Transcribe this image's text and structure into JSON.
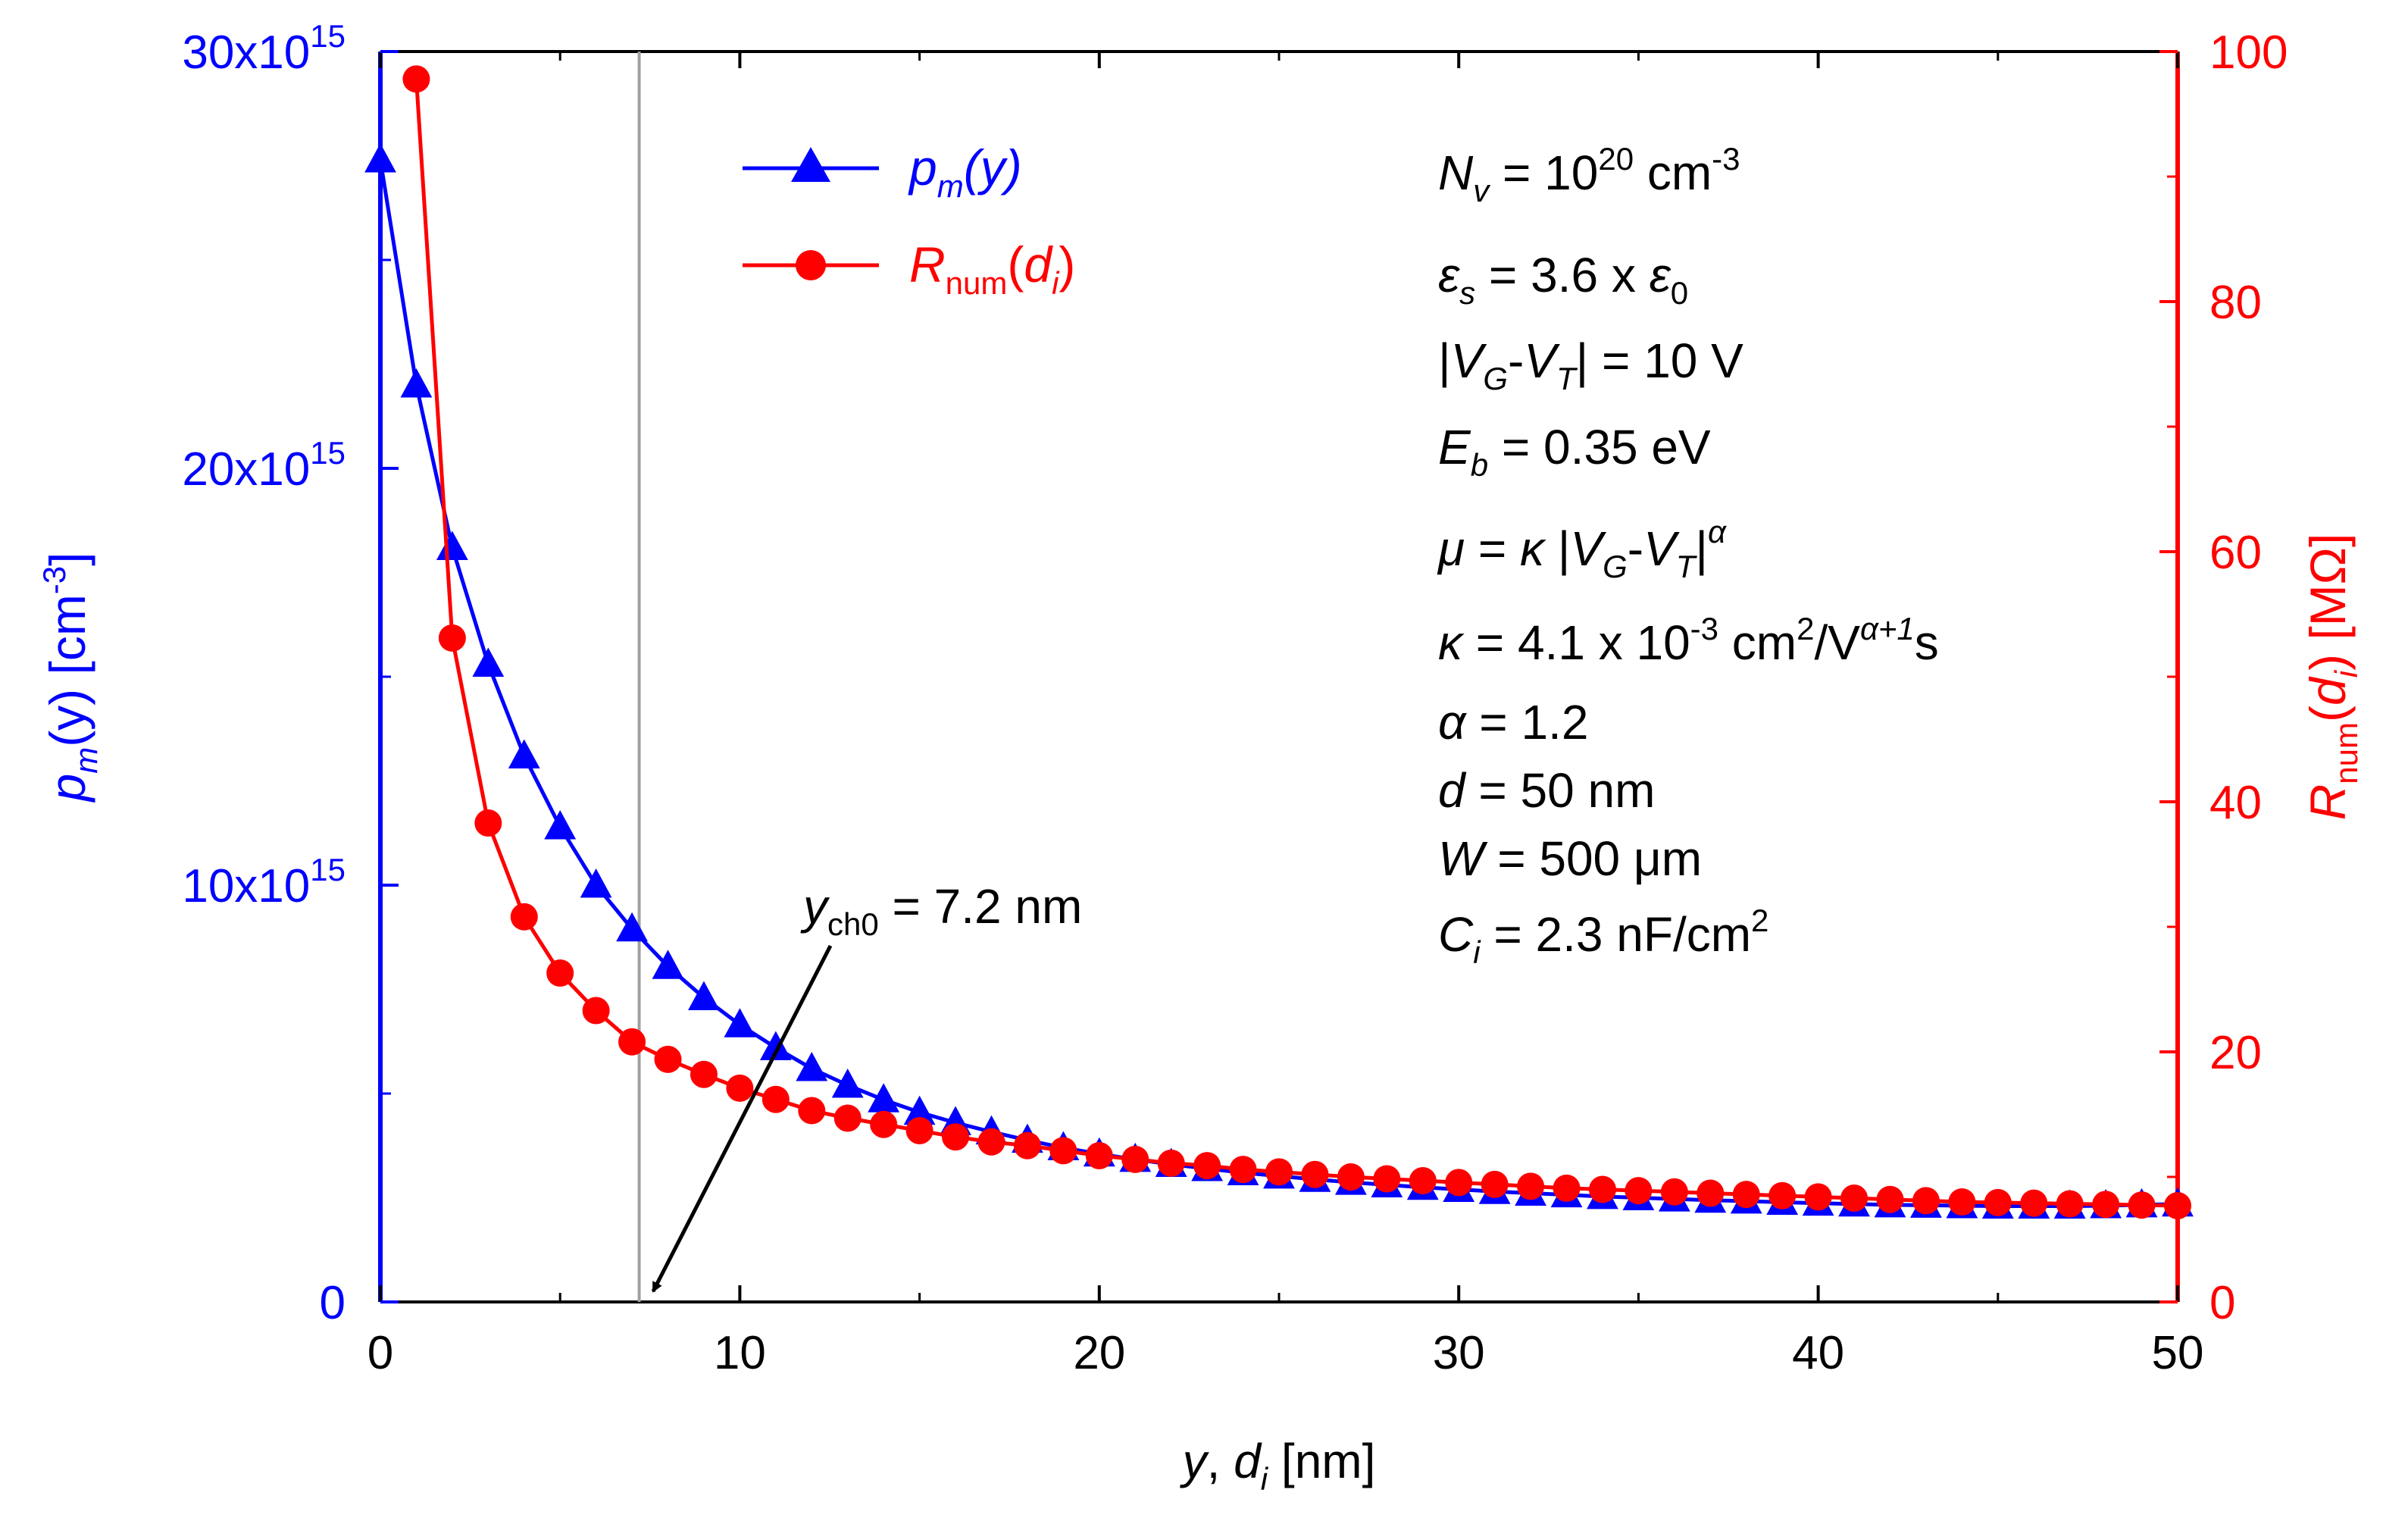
{
  "chart_data": {
    "type": "line",
    "x": [
      0,
      1,
      2,
      3,
      4,
      5,
      6,
      7,
      8,
      9,
      10,
      11,
      12,
      13,
      14,
      15,
      16,
      17,
      18,
      19,
      20,
      21,
      22,
      23,
      24,
      25,
      26,
      27,
      28,
      29,
      30,
      31,
      32,
      33,
      34,
      35,
      36,
      37,
      38,
      39,
      40,
      41,
      42,
      43,
      44,
      45,
      46,
      47,
      48,
      49,
      50
    ],
    "series": [
      {
        "name": "pm(y)",
        "axis": "left",
        "color": "#0000ff",
        "marker": "triangle",
        "x": [
          0,
          1,
          2,
          3,
          4,
          5,
          6,
          7,
          8,
          9,
          10,
          11,
          12,
          13,
          14,
          15,
          16,
          17,
          18,
          19,
          20,
          21,
          22,
          23,
          24,
          25,
          26,
          27,
          28,
          29,
          30,
          31,
          32,
          33,
          34,
          35,
          36,
          37,
          38,
          39,
          40,
          41,
          42,
          43,
          44,
          45,
          46,
          47,
          48,
          49,
          50
        ],
        "values": [
          2.74e+16,
          2.2e+16,
          1.81e+16,
          1.53e+16,
          1.31e+16,
          1.14e+16,
          1e+16,
          8950000000000000.0,
          8050000000000000.0,
          7300000000000000.0,
          6650000000000000.0,
          6100000000000000.0,
          5600000000000000.0,
          5200000000000000.0,
          4850000000000000.0,
          4550000000000000.0,
          4300000000000000.0,
          4080000000000000.0,
          3880000000000000.0,
          3700000000000000.0,
          3550000000000000.0,
          3420000000000000.0,
          3300000000000000.0,
          3200000000000000.0,
          3100000000000000.0,
          3020000000000000.0,
          2940000000000000.0,
          2870000000000000.0,
          2810000000000000.0,
          2750000000000000.0,
          2700000000000000.0,
          2650000000000000.0,
          2610000000000000.0,
          2570000000000000.0,
          2530000000000000.0,
          2500000000000000.0,
          2470000000000000.0,
          2440000000000000.0,
          2420000000000000.0,
          2390000000000000.0,
          2370000000000000.0,
          2350000000000000.0,
          2330000000000000.0,
          2320000000000000.0,
          2310000000000000.0,
          2300000000000000.0,
          2300000000000000.0,
          2300000000000000.0,
          2310000000000000.0,
          2330000000000000.0,
          2350000000000000.0
        ]
      },
      {
        "name": "Rnum(di)",
        "axis": "right",
        "color": "#ff0000",
        "marker": "circle",
        "x": [
          1,
          2,
          3,
          4,
          5,
          6,
          7,
          8,
          9,
          10,
          11,
          12,
          13,
          14,
          15,
          16,
          17,
          18,
          19,
          20,
          21,
          22,
          23,
          24,
          25,
          26,
          27,
          28,
          29,
          30,
          31,
          32,
          33,
          34,
          35,
          36,
          37,
          38,
          39,
          40,
          41,
          42,
          43,
          44,
          45,
          46,
          47,
          48,
          49,
          50
        ],
        "values": [
          97.8,
          53.1,
          38.3,
          30.8,
          26.3,
          23.3,
          20.8,
          19.4,
          18.2,
          17.1,
          16.2,
          15.3,
          14.7,
          14.2,
          13.7,
          13.2,
          12.8,
          12.5,
          12.1,
          11.7,
          11.4,
          11.1,
          10.9,
          10.6,
          10.4,
          10.2,
          10.0,
          9.85,
          9.7,
          9.55,
          9.4,
          9.25,
          9.1,
          9.0,
          8.9,
          8.8,
          8.7,
          8.6,
          8.5,
          8.4,
          8.3,
          8.2,
          8.1,
          8.0,
          7.95,
          7.9,
          7.85,
          7.8,
          7.75,
          7.7
        ]
      }
    ],
    "xlim": [
      0,
      50
    ],
    "xticks": [
      0,
      10,
      20,
      30,
      40,
      50
    ],
    "xlabel_parts": {
      "y": "y",
      "sep": ", ",
      "d": "d",
      "i": "i",
      "unit": " [nm]"
    },
    "ylim_left": [
      0,
      3e+16
    ],
    "yticks_left": [
      {
        "value": 0,
        "label": "0",
        "sup": ""
      },
      {
        "value": 1e+16,
        "label": "10x10",
        "sup": "15"
      },
      {
        "value": 2e+16,
        "label": "20x10",
        "sup": "15"
      },
      {
        "value": 3e+16,
        "label": "30x10",
        "sup": "15"
      }
    ],
    "ylabel_left_parts": {
      "p": "p",
      "m": "m",
      "rest": "(y) [cm",
      "exp": "-3",
      "close": "]"
    },
    "ylim_right": [
      0,
      100
    ],
    "yticks_right": [
      0,
      20,
      40,
      60,
      80,
      100
    ],
    "ylabel_right_parts": {
      "R": "R",
      "num": "num",
      "open": "(",
      "d": "d",
      "i": "i",
      "close": ") [MΩ]"
    },
    "vline_x": 7.2,
    "arrow_annotation": {
      "y": "y",
      "sub": "ch0",
      "text": " = 7.2 nm"
    },
    "legend": [
      {
        "series": "pm(y)",
        "p": "p",
        "m": "m",
        "rest": "(y)"
      },
      {
        "series": "Rnum(di)",
        "R": "R",
        "num": "num",
        "open": "(",
        "d": "d",
        "i": "i",
        "close": ")"
      }
    ],
    "parameters": {
      "nv": {
        "sym": "N",
        "sub": "v",
        "mid": " = 10",
        "exp": "20",
        "unit": " cm",
        "unitexp": "-3"
      },
      "eps": {
        "sym": "ε",
        "sub": "s",
        "mid": " = 3.6 x ",
        "sym2": "ε",
        "sub2": "0"
      },
      "vgvt": {
        "a": "|",
        "V": "V",
        "G": "G",
        "dash": "-",
        "V2": "V",
        "T": "T",
        "rest": "| = 10 V"
      },
      "eb": {
        "sym": "E",
        "sub": "b",
        "rest": " = 0.35 eV"
      },
      "mu": {
        "mu": "μ",
        "eq": " = ",
        "kappa": "κ",
        "bar": " |",
        "V": "V",
        "G": "G",
        "dash": "-",
        "V2": "V",
        "T": "T",
        "bar2": "|",
        "alpha": "α"
      },
      "kappa": {
        "kappa": "κ",
        "rest": " = 4.1 x 10",
        "exp": "-3",
        "unit": " cm",
        "exp2": "2",
        "slash": "/V",
        "exp3": "α+1",
        "s": "s"
      },
      "alpha": {
        "alpha": "α",
        "rest": " = 1.2"
      },
      "d": {
        "d": "d",
        "rest": " = 50 nm"
      },
      "w": {
        "w": "W",
        "rest": " = 500 μm"
      },
      "ci": {
        "c": "C",
        "sub": "i",
        "rest": " = 2.3 nF/cm",
        "exp": "2"
      }
    }
  }
}
